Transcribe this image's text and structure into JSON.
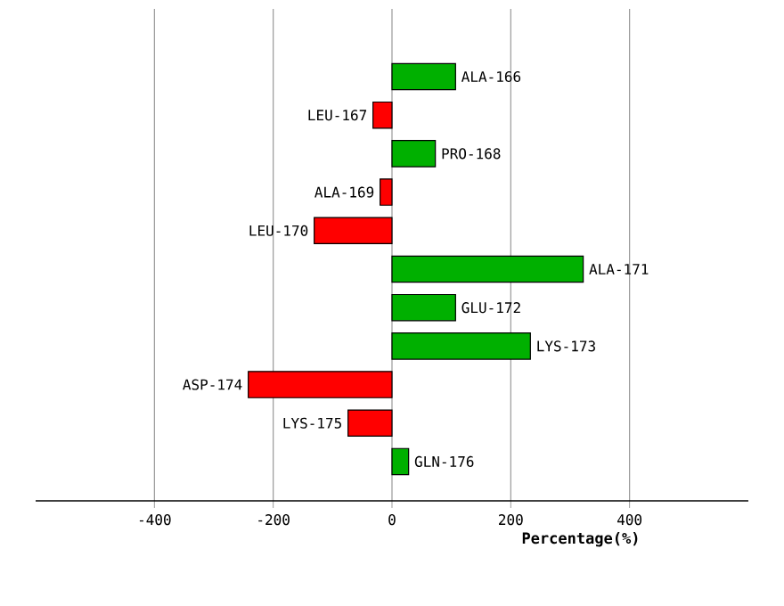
{
  "chart_data": {
    "type": "bar",
    "orientation": "horizontal",
    "xlabel": "Percentage(%)",
    "categories": [
      "ALA-166",
      "LEU-167",
      "PRO-168",
      "ALA-169",
      "LEU-170",
      "ALA-171",
      "GLU-172",
      "LYS-173",
      "ASP-174",
      "LYS-175",
      "GLN-176"
    ],
    "values": [
      107,
      -32,
      73,
      -20,
      -131,
      322,
      107,
      233,
      -242,
      -74,
      28
    ],
    "colors": [
      "#00b000",
      "#ff0000",
      "#00b000",
      "#ff0000",
      "#ff0000",
      "#00b000",
      "#00b000",
      "#00b000",
      "#ff0000",
      "#ff0000",
      "#00b000"
    ],
    "xlim": [
      -600,
      600
    ],
    "xticks": [
      -400,
      -200,
      0,
      200,
      400
    ],
    "grid": "x"
  }
}
